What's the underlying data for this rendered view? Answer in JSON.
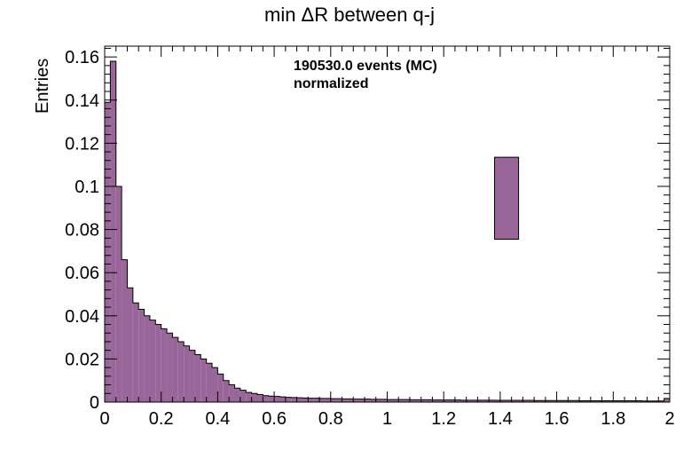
{
  "chart_data": {
    "type": "bar",
    "title": "min ΔR between q-j",
    "ylabel": "Entries",
    "xlabel": "",
    "xlim": [
      0,
      2
    ],
    "ylim": [
      0,
      0.165
    ],
    "bin_width": 0.02,
    "x_ticks": [
      "0",
      "0.2",
      "0.4",
      "0.6",
      "0.8",
      "1",
      "1.2",
      "1.4",
      "1.6",
      "1.8",
      "2"
    ],
    "y_ticks": [
      "0",
      "0.02",
      "0.04",
      "0.06",
      "0.08",
      "0.1",
      "0.12",
      "0.14",
      "0.16"
    ],
    "annotations": [
      "190530.0 events (MC)",
      "normalized"
    ],
    "fill_color": "#996699",
    "line_color": "#000000",
    "grid": false,
    "values": [
      0.139,
      0.158,
      0.1,
      0.066,
      0.053,
      0.046,
      0.043,
      0.04,
      0.038,
      0.036,
      0.034,
      0.032,
      0.03,
      0.028,
      0.026,
      0.024,
      0.022,
      0.02,
      0.018,
      0.016,
      0.013,
      0.01,
      0.008,
      0.0065,
      0.0055,
      0.0045,
      0.004,
      0.0035,
      0.003,
      0.0028,
      0.0026,
      0.0024,
      0.0022,
      0.0021,
      0.002,
      0.0019,
      0.0018,
      0.0018,
      0.0017,
      0.0017,
      0.0016,
      0.0016,
      0.0015,
      0.0015,
      0.0014,
      0.0014,
      0.0014,
      0.0013,
      0.0013,
      0.0013,
      0.0012,
      0.0012,
      0.0012,
      0.0012,
      0.0011,
      0.0011,
      0.0011,
      0.0011,
      0.001,
      0.001,
      0.001,
      0.001,
      0.001,
      0.0009,
      0.0009,
      0.0009,
      0.0009,
      0.0009,
      0.0009,
      0.0008,
      0.0008,
      0.0008,
      0.0008,
      0.0008,
      0.0008,
      0.0008,
      0.0007,
      0.0007,
      0.0007,
      0.0007,
      0.0007,
      0.0007,
      0.0007,
      0.0007,
      0.0006,
      0.0006,
      0.0006,
      0.0006,
      0.0006,
      0.0006,
      0.0006,
      0.0006,
      0.0006,
      0.0006,
      0.0006,
      0.0005,
      0.0005,
      0.0005,
      0.0005,
      0.0017
    ],
    "legend_box": {
      "description": "filled legend marker without text",
      "x_range": [
        1.38,
        1.465
      ],
      "y_range": [
        0.0755,
        0.1135
      ]
    }
  }
}
